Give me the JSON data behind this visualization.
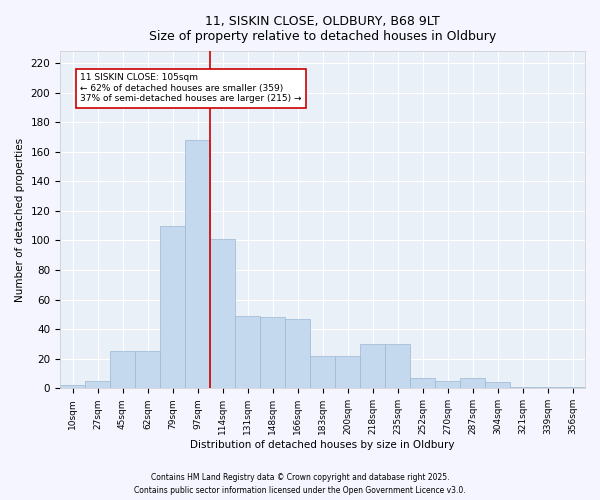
{
  "title1": "11, SISKIN CLOSE, OLDBURY, B68 9LT",
  "title2": "Size of property relative to detached houses in Oldbury",
  "xlabel": "Distribution of detached houses by size in Oldbury",
  "ylabel": "Number of detached properties",
  "categories": [
    "10sqm",
    "27sqm",
    "45sqm",
    "62sqm",
    "79sqm",
    "97sqm",
    "114sqm",
    "131sqm",
    "148sqm",
    "166sqm",
    "183sqm",
    "200sqm",
    "218sqm",
    "235sqm",
    "252sqm",
    "270sqm",
    "287sqm",
    "304sqm",
    "321sqm",
    "339sqm",
    "356sqm"
  ],
  "values": [
    2,
    5,
    25,
    25,
    110,
    168,
    101,
    49,
    48,
    47,
    22,
    22,
    30,
    30,
    7,
    5,
    7,
    4,
    1,
    1,
    1
  ],
  "bar_color": "#c5d9ee",
  "bar_edge_color": "#9ab8d4",
  "bg_color": "#eaf0f8",
  "grid_color": "#ffffff",
  "vline_color": "#cc0000",
  "vline_pos": 5.5,
  "annotation_text": "11 SISKIN CLOSE: 105sqm\n← 62% of detached houses are smaller (359)\n37% of semi-detached houses are larger (215) →",
  "annotation_box_color": "#ffffff",
  "annotation_box_edge": "#cc0000",
  "footnote1": "Contains HM Land Registry data © Crown copyright and database right 2025.",
  "footnote2": "Contains public sector information licensed under the Open Government Licence v3.0.",
  "ylim": [
    0,
    228
  ],
  "yticks": [
    0,
    20,
    40,
    60,
    80,
    100,
    120,
    140,
    160,
    180,
    200,
    220
  ],
  "fig_facecolor": "#f5f5ff"
}
